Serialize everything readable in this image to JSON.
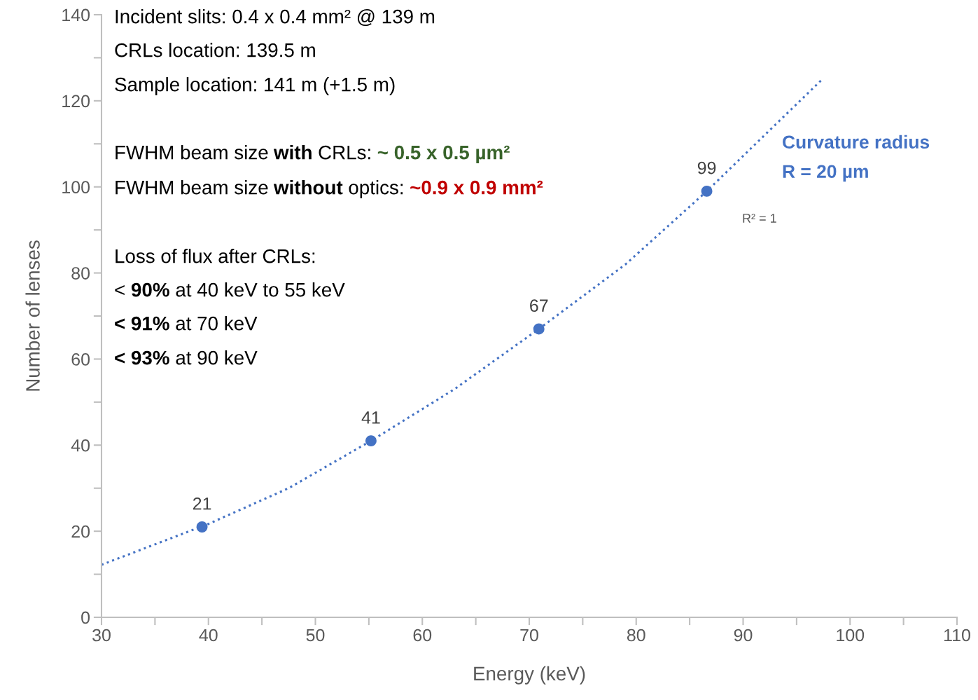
{
  "chart_data": {
    "type": "scatter",
    "xlabel": "Energy (keV)",
    "ylabel": "Number of lenses",
    "xlim": [
      30,
      110
    ],
    "xticks": [
      30,
      {
        "value": 35,
        "label": null
      },
      40,
      {
        "value": 45,
        "label": null
      },
      50,
      {
        "value": 55,
        "label": null
      },
      60,
      {
        "value": 65,
        "label": null
      },
      70,
      {
        "value": 75,
        "label": null
      },
      80,
      {
        "value": 85,
        "label": null
      },
      90,
      {
        "value": 95,
        "label": null
      },
      100,
      {
        "value": 105,
        "label": null
      },
      110
    ],
    "ylim": [
      0,
      140
    ],
    "yticks": [
      0,
      {
        "value": 10,
        "label": null
      },
      20,
      {
        "value": 30,
        "label": null
      },
      40,
      {
        "value": 50,
        "label": null
      },
      60,
      {
        "value": 70,
        "label": null
      },
      80,
      {
        "value": 90,
        "label": null
      },
      100,
      {
        "value": 110,
        "label": null
      },
      120,
      {
        "value": 130,
        "label": null
      },
      140
    ],
    "grid": false,
    "legend": false,
    "marker": "circle",
    "series": [
      {
        "color": "#4472c4",
        "x": [
          39.4,
          55.2,
          70.9,
          86.6
        ],
        "values": [
          21,
          41,
          67,
          99
        ],
        "data_labels": true
      },
      {
        "type": "line",
        "color": "#4472c4",
        "line_style": "dotted",
        "marker": "none",
        "x": [
          30,
          40,
          47.5,
          55.2,
          63,
          70.9,
          79,
          86.6,
          92,
          97.4
        ],
        "values": [
          12.2,
          21.7,
          30,
          41,
          53,
          67,
          82,
          99,
          112,
          125
        ]
      }
    ],
    "annotations": [
      "Incident slits: 0.4 x 0.4 mm² @ 139 m",
      "CRLs location: 139.5 m",
      "Sample location: 141 m (+1.5 m)",
      "FWHM beam size ",
      "with",
      " CRLs: ",
      "~ 0.5 x 0.5 µm²",
      "FWHM beam size ",
      "without",
      " optics: ",
      "~0.9 x 0.9 mm²",
      "Loss of flux after CRLs:",
      "< ",
      "90%",
      " at 40 keV to 55 keV",
      "< 91%",
      " at 70 keV",
      "< 93%",
      " at 90 keV",
      "Curvature radius",
      "R = 20 µm",
      "R² = 1"
    ]
  }
}
